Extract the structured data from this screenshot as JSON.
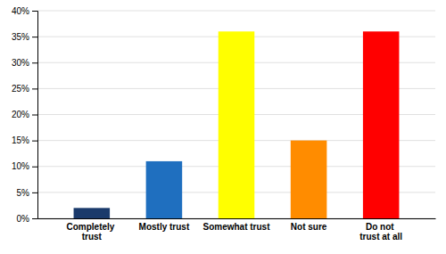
{
  "chart_data": {
    "type": "bar",
    "categories": [
      "Completely trust",
      "Mostly trust",
      "Somewhat trust",
      "Not sure",
      "Do not trust at all"
    ],
    "values": [
      2,
      11,
      36,
      15,
      36
    ],
    "colors": [
      "#1A3A6B",
      "#1F6FBF",
      "#FFFF00",
      "#FF8C00",
      "#FF0000"
    ],
    "ylim": [
      0,
      40
    ],
    "yticks": [
      {
        "value": 0,
        "label": "0%"
      },
      {
        "value": 5,
        "label": "5%"
      },
      {
        "value": 10,
        "label": "10%"
      },
      {
        "value": 15,
        "label": "15%"
      },
      {
        "value": 20,
        "label": "20%"
      },
      {
        "value": 25,
        "label": "25%"
      },
      {
        "value": 30,
        "label": "30%"
      },
      {
        "value": 35,
        "label": "35%"
      },
      {
        "value": 40,
        "label": "40%"
      }
    ],
    "grid": true
  }
}
